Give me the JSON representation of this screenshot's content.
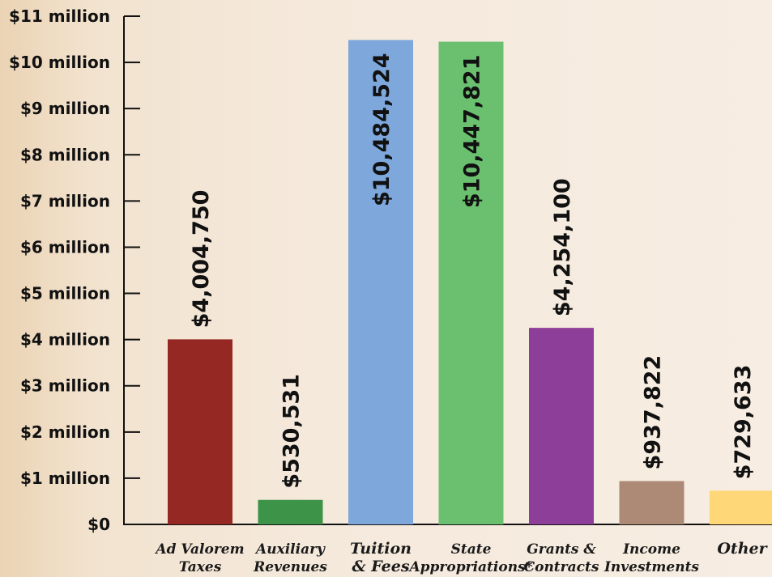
{
  "chart_data": {
    "type": "bar",
    "title": "",
    "xlabel": "",
    "ylabel": "",
    "ylim": [
      0,
      11000000
    ],
    "grid": false,
    "legend": "none",
    "y_ticks": [
      {
        "value": 0,
        "label": "$0"
      },
      {
        "value": 1000000,
        "label": "$1 million"
      },
      {
        "value": 2000000,
        "label": "$2 million"
      },
      {
        "value": 3000000,
        "label": "$3 million"
      },
      {
        "value": 4000000,
        "label": "$4 million"
      },
      {
        "value": 5000000,
        "label": "$5 million"
      },
      {
        "value": 6000000,
        "label": "$6 million"
      },
      {
        "value": 7000000,
        "label": "$7 million"
      },
      {
        "value": 8000000,
        "label": "$8 million"
      },
      {
        "value": 9000000,
        "label": "$9 million"
      },
      {
        "value": 10000000,
        "label": "$10 million"
      },
      {
        "value": 11000000,
        "label": "$11 million"
      }
    ],
    "categories": [
      [
        "Ad Valorem",
        "Taxes"
      ],
      [
        "Auxiliary",
        "Revenues"
      ],
      [
        "Tuition",
        "& Fees"
      ],
      [
        "State",
        "Appropriations*"
      ],
      [
        "Grants &",
        "Contracts"
      ],
      [
        "Income",
        "Investments"
      ],
      [
        "Other"
      ]
    ],
    "values": [
      4004750,
      530531,
      10484524,
      10447821,
      4254100,
      937822,
      729633
    ],
    "value_labels": [
      "$4,004,750",
      "$530,531",
      "$10,484,524",
      "$10,447,821",
      "$4,254,100",
      "$937,822",
      "$729,633"
    ],
    "colors": [
      "#952823",
      "#3d9449",
      "#7ea7db",
      "#6bc070",
      "#8d3e98",
      "#ad8a76",
      "#fdd778"
    ]
  }
}
